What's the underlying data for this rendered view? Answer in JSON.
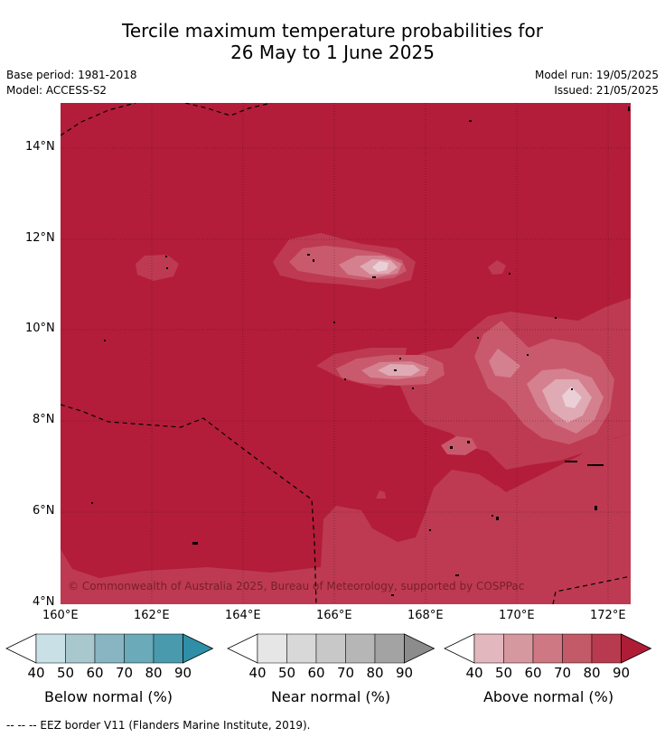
{
  "header": {
    "title_line1": "Tercile maximum temperature probabilities for",
    "title_line2": "26 May to 1 June 2025",
    "base_period": "Base period: 1981-2018",
    "model": "Model: ACCESS-S2",
    "model_run": "Model run: 19/05/2025",
    "issued": "Issued: 21/05/2025"
  },
  "map": {
    "copyright": "© Commonwealth of Australia 2025, Bureau of Meteorology, supported by COSPPac",
    "lat_labels": [
      "14°N",
      "12°N",
      "10°N",
      "8°N",
      "6°N",
      "4°N"
    ],
    "lon_labels": [
      "160°E",
      "162°E",
      "164°E",
      "166°E",
      "168°E",
      "170°E",
      "172°E"
    ],
    "colors": {
      "above_90": "#b31d39",
      "above_80": "#bd3a52",
      "above_70": "#c95a6d",
      "above_60": "#d4808f",
      "above_50": "#dfaab4",
      "above_40": "#ebcfd6"
    }
  },
  "colorbars": [
    {
      "label": "Below normal (%)",
      "ticks": [
        "40",
        "50",
        "60",
        "70",
        "80",
        "90"
      ],
      "colors": [
        "#c9e1e6",
        "#a8c8ce",
        "#88b5c1",
        "#6aaab9",
        "#4a9aae",
        "#2e8fa6"
      ]
    },
    {
      "label": "Near normal (%)",
      "ticks": [
        "40",
        "50",
        "60",
        "70",
        "80",
        "90"
      ],
      "colors": [
        "#e6e6e6",
        "#d8d8d8",
        "#c8c8c8",
        "#b6b6b6",
        "#a3a3a3",
        "#8c8c8c"
      ]
    },
    {
      "label": "Above normal (%)",
      "ticks": [
        "40",
        "50",
        "60",
        "70",
        "80",
        "90"
      ],
      "colors": [
        "#e2b7bd",
        "#d6989f",
        "#cd7882",
        "#c25a68",
        "#b83a4e",
        "#ae1c36"
      ]
    }
  ],
  "footer": {
    "legend_text": "--  --  -- EEZ border V11 (Flanders Marine Institute, 2019)."
  }
}
